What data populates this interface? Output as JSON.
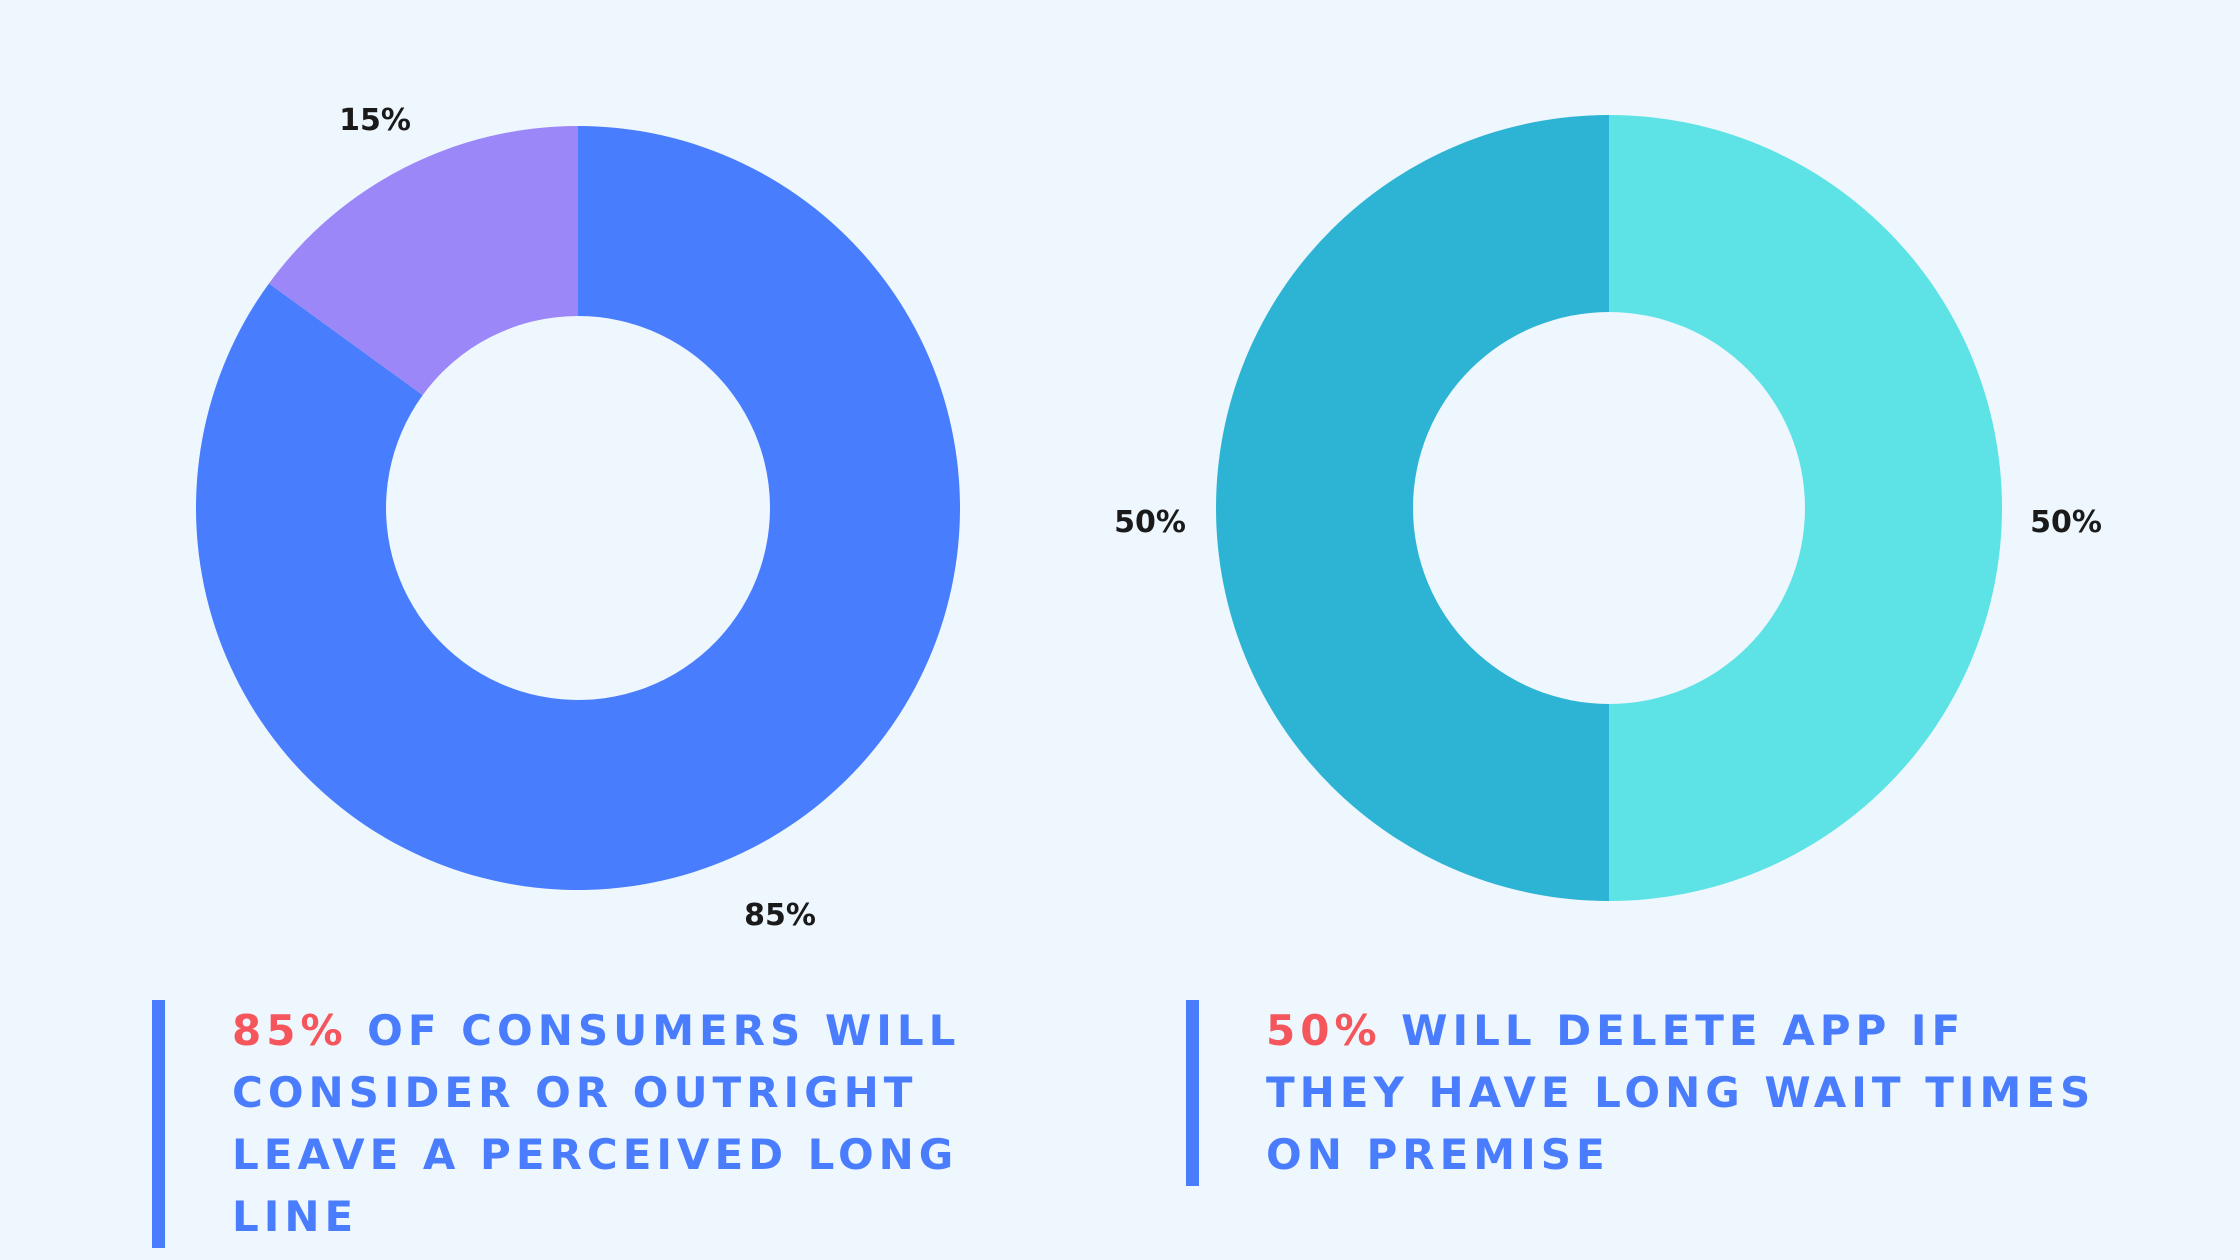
{
  "chart_data": [
    {
      "type": "pie",
      "style": "donut",
      "slices": [
        {
          "label": "85%",
          "value": 85,
          "color": "#487dfe"
        },
        {
          "label": "15%",
          "value": 15,
          "color": "#9b87f8"
        }
      ]
    },
    {
      "type": "pie",
      "style": "donut",
      "slices": [
        {
          "label": "50%",
          "value": 50,
          "color": "#5de2e6"
        },
        {
          "label": "50%",
          "value": 50,
          "color": "#2db4d5"
        }
      ]
    }
  ],
  "captions": [
    {
      "highlight": "85%",
      "text": " OF CONSUMERS WILL CONSIDER OR OUTRIGHT LEAVE A PERCEIVED LONG LINE"
    },
    {
      "highlight": "50%",
      "text": " WILL DELETE APP IF THEY HAVE LONG WAIT TIMES ON PREMISE"
    }
  ],
  "colors": {
    "background": "#eef6fe",
    "caption_text": "#4a7dfd",
    "caption_highlight": "#f4565c",
    "caption_bar": "#4a7dfd"
  }
}
